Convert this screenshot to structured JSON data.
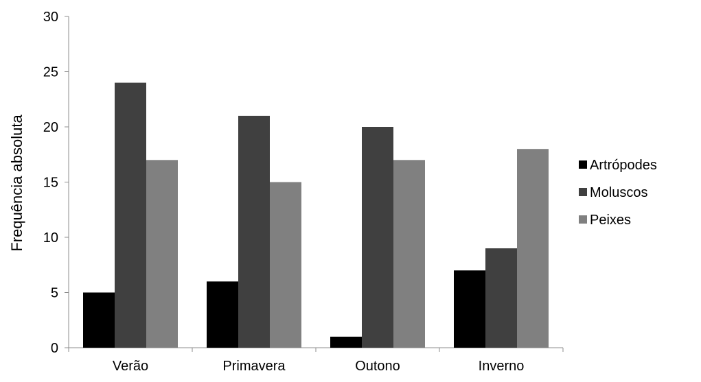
{
  "chart_data": {
    "type": "bar",
    "title": "",
    "xlabel": "",
    "ylabel": "Frequência absoluta",
    "categories": [
      "Verão",
      "Primavera",
      "Outono",
      "Inverno"
    ],
    "series": [
      {
        "name": "Artrópodes",
        "values": [
          5,
          6,
          1,
          7
        ],
        "color": "#000000"
      },
      {
        "name": "Moluscos",
        "values": [
          24,
          21,
          20,
          9
        ],
        "color": "#404040"
      },
      {
        "name": "Peixes",
        "values": [
          17,
          15,
          17,
          18
        ],
        "color": "#808080"
      }
    ],
    "ylim": [
      0,
      30
    ],
    "yticks": [
      0,
      5,
      10,
      15,
      20,
      25,
      30
    ],
    "grid": false,
    "legend": "right"
  }
}
